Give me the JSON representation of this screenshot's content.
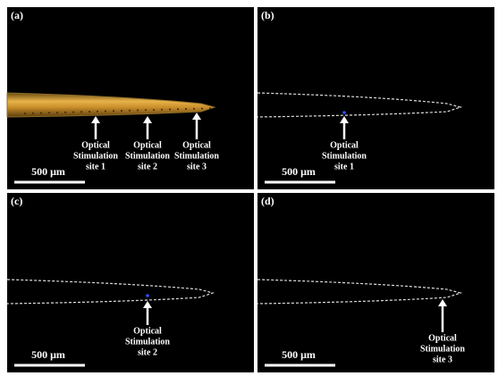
{
  "panels": [
    {
      "label": "(a)",
      "scale_bar": "500 μm",
      "annotations": [
        {
          "lines": [
            "Optical",
            "Stimulation",
            "site 1"
          ]
        },
        {
          "lines": [
            "Optical",
            "Stimulation",
            "site 2"
          ]
        },
        {
          "lines": [
            "Optical",
            "Stimulation",
            "site 3"
          ]
        }
      ]
    },
    {
      "label": "(b)",
      "scale_bar": "500 μm",
      "annotations": [
        {
          "lines": [
            "Optical",
            "Stimulation",
            "site 1"
          ]
        }
      ]
    },
    {
      "label": "(c)",
      "scale_bar": "500 μm",
      "annotations": [
        {
          "lines": [
            "Optical",
            "Stimulation",
            "site 2"
          ]
        }
      ]
    },
    {
      "label": "(d)",
      "scale_bar": "500 μm",
      "annotations": [
        {
          "lines": [
            "Optical",
            "Stimulation",
            "site 3"
          ]
        }
      ]
    }
  ]
}
